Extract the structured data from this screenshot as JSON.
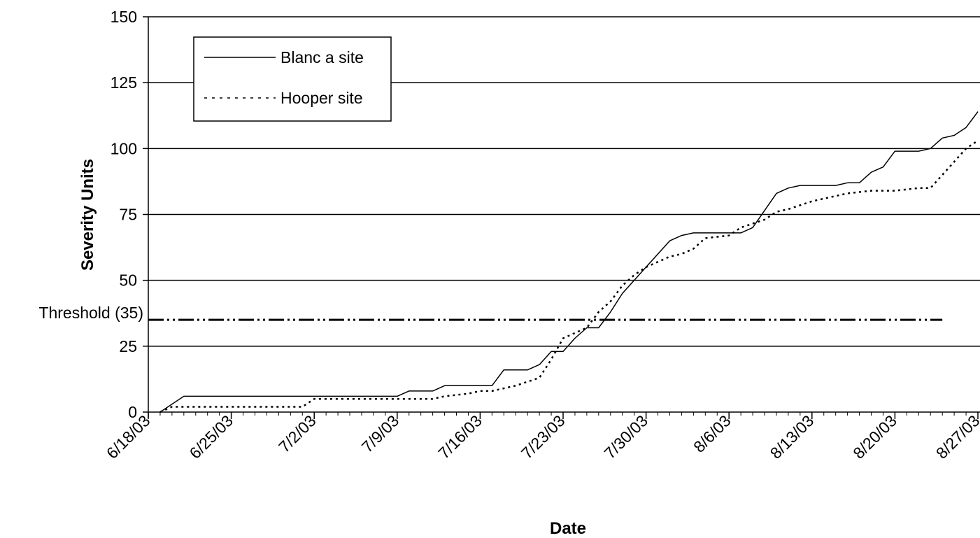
{
  "chart_data": {
    "type": "line",
    "xlabel": "Date",
    "ylabel": "Severity Units",
    "ylim": [
      0,
      150
    ],
    "y_ticks": [
      "0",
      "25",
      "50",
      "75",
      "100",
      "125",
      "150"
    ],
    "x_tick_labels": [
      "6/18/03",
      "6/25/03",
      "7/2/03",
      "7/9/03",
      "7/16/03",
      "7/23/03",
      "7/30/03",
      "8/6/03",
      "8/13/03",
      "8/20/03",
      "8/27/03"
    ],
    "xlim": [
      "2003-06-18",
      "2003-08-27"
    ],
    "grid": "horizontal",
    "legend_position": "top-left",
    "threshold": {
      "label": "Threshold (35)",
      "value": 35,
      "x_range": [
        "2003-06-18",
        "2003-08-24"
      ]
    },
    "series": [
      {
        "name": "Blanc a site",
        "style": "solid",
        "x": [
          "2003-06-19",
          "2003-06-21",
          "2003-06-26",
          "2003-07-02",
          "2003-07-09",
          "2003-07-10",
          "2003-07-12",
          "2003-07-13",
          "2003-07-16",
          "2003-07-17",
          "2003-07-18",
          "2003-07-20",
          "2003-07-21",
          "2003-07-22",
          "2003-07-23",
          "2003-07-24",
          "2003-07-25",
          "2003-07-26",
          "2003-07-27",
          "2003-07-28",
          "2003-07-30",
          "2003-08-01",
          "2003-08-02",
          "2003-08-03",
          "2003-08-05",
          "2003-08-07",
          "2003-08-08",
          "2003-08-10",
          "2003-08-11",
          "2003-08-12",
          "2003-08-15",
          "2003-08-16",
          "2003-08-17",
          "2003-08-18",
          "2003-08-19",
          "2003-08-20",
          "2003-08-22",
          "2003-08-23",
          "2003-08-24",
          "2003-08-25",
          "2003-08-26",
          "2003-08-27"
        ],
        "y": [
          0,
          6,
          6,
          6,
          6,
          8,
          8,
          10,
          10,
          10,
          16,
          16,
          18,
          23,
          23,
          28,
          32,
          32,
          38,
          45,
          55,
          65,
          67,
          68,
          68,
          68,
          70,
          83,
          85,
          86,
          86,
          87,
          87,
          91,
          93,
          99,
          99,
          100,
          104,
          105,
          108,
          114
        ]
      },
      {
        "name": "Hooper site",
        "style": "dotted",
        "x": [
          "2003-06-19",
          "2003-06-20",
          "2003-06-21",
          "2003-07-01",
          "2003-07-02",
          "2003-07-09",
          "2003-07-10",
          "2003-07-12",
          "2003-07-13",
          "2003-07-15",
          "2003-07-16",
          "2003-07-17",
          "2003-07-19",
          "2003-07-21",
          "2003-07-22",
          "2003-07-23",
          "2003-07-24",
          "2003-07-25",
          "2003-07-26",
          "2003-07-27",
          "2003-07-28",
          "2003-07-29",
          "2003-07-30",
          "2003-07-31",
          "2003-08-01",
          "2003-08-02",
          "2003-08-03",
          "2003-08-04",
          "2003-08-06",
          "2003-08-07",
          "2003-08-09",
          "2003-08-10",
          "2003-08-11",
          "2003-08-13",
          "2003-08-14",
          "2003-08-16",
          "2003-08-18",
          "2003-08-20",
          "2003-08-22",
          "2003-08-23",
          "2003-08-24",
          "2003-08-25",
          "2003-08-26",
          "2003-08-27"
        ],
        "y": [
          0,
          2,
          2,
          2,
          5,
          5,
          5,
          5,
          6,
          7,
          8,
          8,
          10,
          13,
          20,
          28,
          30,
          32,
          38,
          42,
          48,
          52,
          55,
          57,
          59,
          60,
          62,
          66,
          67,
          70,
          73,
          76,
          77,
          80,
          81,
          83,
          84,
          84,
          85,
          85,
          90,
          95,
          100,
          103
        ]
      }
    ]
  }
}
